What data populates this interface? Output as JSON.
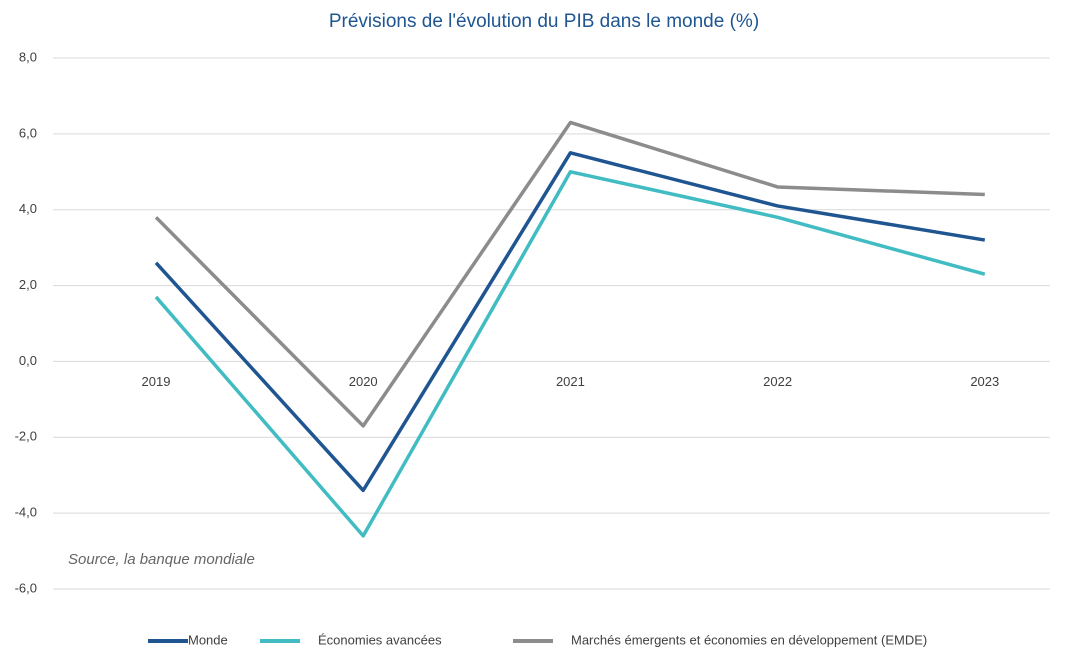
{
  "chart_data": {
    "type": "line",
    "title": "Prévisions de l'évolution du PIB dans le monde (%)",
    "annotation": "Source, la banque mondiale",
    "categories": [
      "2019",
      "2020",
      "2021",
      "2022",
      "2023"
    ],
    "series": [
      {
        "name": "Monde",
        "color": "#1f5591",
        "values": [
          2.6,
          -3.4,
          5.5,
          4.1,
          3.2
        ]
      },
      {
        "name": "Économies avancées",
        "color": "#40bcc2",
        "values": [
          1.7,
          -4.6,
          5.0,
          3.8,
          2.3
        ]
      },
      {
        "name": "Marchés émergents et économies en développement (EMDE)",
        "color": "#8c8c8c",
        "values": [
          3.8,
          -1.7,
          6.3,
          4.6,
          4.4
        ]
      }
    ],
    "ylim": [
      -6,
      8
    ],
    "yticks": [
      {
        "value": 8,
        "label": "8,0"
      },
      {
        "value": 6,
        "label": "6,0"
      },
      {
        "value": 4,
        "label": "4,0"
      },
      {
        "value": 2,
        "label": "2,0"
      },
      {
        "value": 0,
        "label": "0,0"
      },
      {
        "value": -2,
        "label": "-2,0"
      },
      {
        "value": -4,
        "label": "-4,0"
      },
      {
        "value": -6,
        "label": "-6,0"
      }
    ],
    "grid": true,
    "legend": "bottom"
  }
}
